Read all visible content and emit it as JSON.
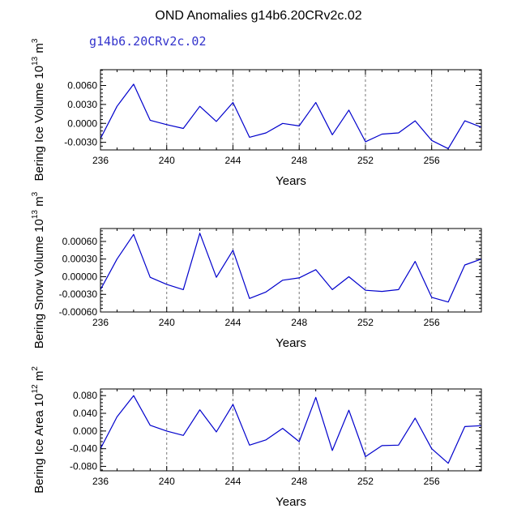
{
  "figure": {
    "title": "OND Anomalies g14b6.20CRv2c.02",
    "subtitle": "g14b6.20CRv2c.02"
  },
  "colors": {
    "line": "#0000cc",
    "grid": "#777777",
    "axis": "#000000"
  },
  "chart_data": [
    {
      "type": "line",
      "ylabel": "Bering Ice Volume 10^13 m^3",
      "ylabel_base": "Bering Ice Volume 10",
      "ylabel_exp": "13",
      "ylabel_unit": " m",
      "ylabel_unit_exp": "3",
      "xlabel": "Years",
      "xlim": [
        236,
        259
      ],
      "ylim": [
        -0.0042,
        0.0085
      ],
      "xticks": [
        236,
        240,
        244,
        248,
        252,
        256
      ],
      "xtick_labels": [
        "236",
        "240",
        "244",
        "248",
        "252",
        "256"
      ],
      "yticks": [
        -0.003,
        0.0,
        0.003,
        0.006
      ],
      "ytick_labels": [
        "-0.0030",
        "0.0000",
        "0.0030",
        "0.0060"
      ],
      "grid_x": [
        240,
        244,
        248,
        252,
        256
      ],
      "x": [
        236,
        237,
        238,
        239,
        240,
        241,
        242,
        243,
        244,
        245,
        246,
        247,
        248,
        249,
        250,
        251,
        252,
        253,
        254,
        255,
        256,
        257,
        258,
        259
      ],
      "y": [
        -0.0024,
        0.0027,
        0.0062,
        0.0005,
        -0.0002,
        -0.0008,
        0.0027,
        0.0003,
        0.0033,
        -0.0022,
        -0.0015,
        0.0,
        -0.0004,
        0.0033,
        -0.0018,
        0.0021,
        -0.0029,
        -0.0017,
        -0.0015,
        0.0004,
        -0.0027,
        -0.004,
        0.0004,
        -0.0006
      ]
    },
    {
      "type": "line",
      "ylabel": "Bering Snow Volume 10^13 m^3",
      "ylabel_base": "Bering Snow Volume 10",
      "ylabel_exp": "13",
      "ylabel_unit": " m",
      "ylabel_unit_exp": "3",
      "xlabel": "Years",
      "xlim": [
        236,
        259
      ],
      "ylim": [
        -0.0006,
        0.00082
      ],
      "xticks": [
        236,
        240,
        244,
        248,
        252,
        256
      ],
      "xtick_labels": [
        "236",
        "240",
        "244",
        "248",
        "252",
        "256"
      ],
      "yticks": [
        -0.0006,
        -0.0003,
        0.0,
        0.0003,
        0.0006
      ],
      "ytick_labels": [
        "-0.00060",
        "-0.00030",
        "0.00000",
        "0.00030",
        "0.00060"
      ],
      "grid_x": [
        240,
        244,
        248,
        252,
        256
      ],
      "x": [
        236,
        237,
        238,
        239,
        240,
        241,
        242,
        243,
        244,
        245,
        246,
        247,
        248,
        249,
        250,
        251,
        252,
        253,
        254,
        255,
        256,
        257,
        258,
        259
      ],
      "y": [
        -0.00022,
        0.0003,
        0.00072,
        -1e-05,
        -0.00013,
        -0.00022,
        0.00074,
        -1e-05,
        0.00045,
        -0.00037,
        -0.00026,
        -6e-05,
        -2e-05,
        0.00012,
        -0.00022,
        0.0,
        -0.00023,
        -0.00025,
        -0.00022,
        0.00026,
        -0.00035,
        -0.00043,
        0.0002,
        0.0003
      ]
    },
    {
      "type": "line",
      "ylabel": "Bering Ice Area 10^12 m^2",
      "ylabel_base": "Bering Ice Area 10",
      "ylabel_exp": "12",
      "ylabel_unit": " m",
      "ylabel_unit_exp": "2",
      "xlabel": "Years",
      "xlim": [
        236,
        259
      ],
      "ylim": [
        -0.09,
        0.095
      ],
      "xticks": [
        236,
        240,
        244,
        248,
        252,
        256
      ],
      "xtick_labels": [
        "236",
        "240",
        "244",
        "248",
        "252",
        "256"
      ],
      "yticks": [
        -0.08,
        -0.04,
        0.0,
        0.04,
        0.08
      ],
      "ytick_labels": [
        "-0.080",
        "-0.040",
        "0.000",
        "0.040",
        "0.080"
      ],
      "grid_x": [
        240,
        244,
        248,
        252,
        256
      ],
      "x": [
        236,
        237,
        238,
        239,
        240,
        241,
        242,
        243,
        244,
        245,
        246,
        247,
        248,
        249,
        250,
        251,
        252,
        253,
        254,
        255,
        256,
        257,
        258,
        259
      ],
      "y": [
        -0.04,
        0.032,
        0.08,
        0.013,
        0.0,
        -0.01,
        0.048,
        -0.002,
        0.06,
        -0.032,
        -0.02,
        0.006,
        -0.024,
        0.076,
        -0.044,
        0.047,
        -0.058,
        -0.033,
        -0.032,
        0.029,
        -0.04,
        -0.073,
        0.01,
        0.012
      ]
    }
  ]
}
